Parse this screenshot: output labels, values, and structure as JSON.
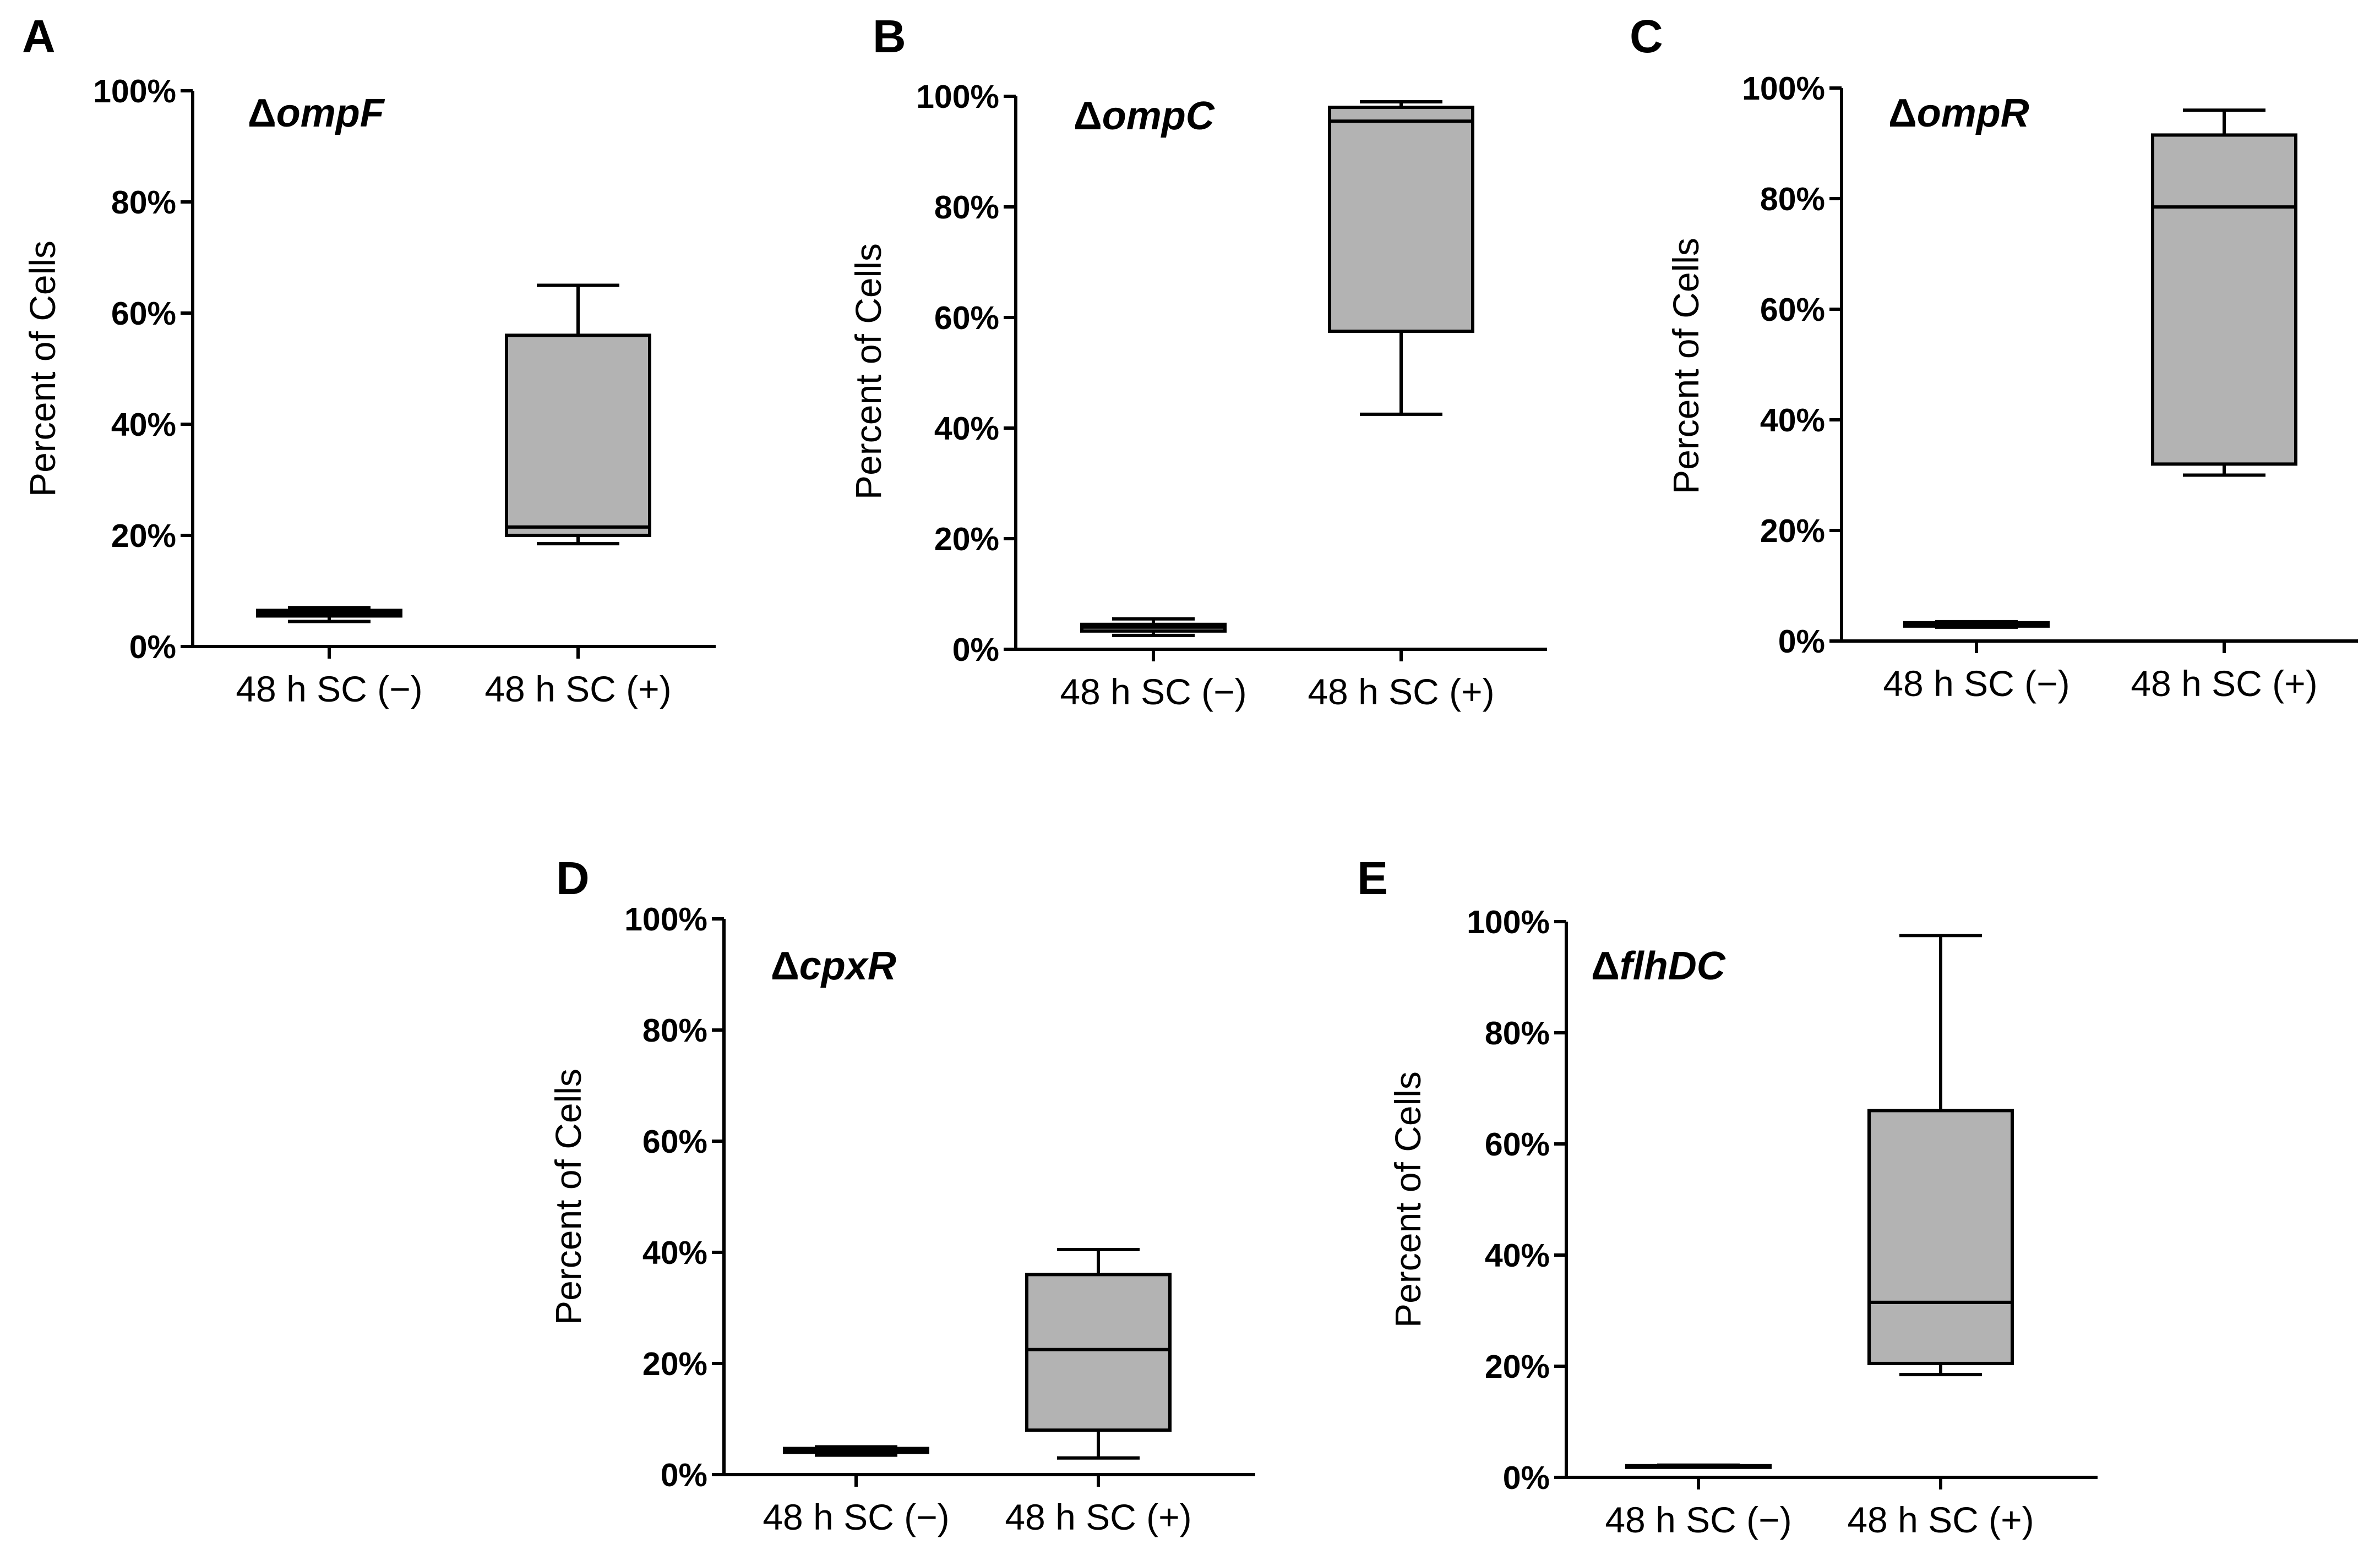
{
  "figure": {
    "panels": [
      "A",
      "B",
      "C",
      "D",
      "E"
    ]
  },
  "chart_data": [
    {
      "panel": "A",
      "type": "box",
      "gene_prefix": "Δ",
      "gene": "ompF",
      "ylabel": "Percent of Cells",
      "xlabel": "",
      "ylim": [
        0,
        100
      ],
      "yticks": [
        "0%",
        "20%",
        "40%",
        "60%",
        "80%",
        "100%"
      ],
      "categories": [
        "48 h SC (−)",
        "48 h SC (+)"
      ],
      "series": [
        {
          "name": "48 h SC (−)",
          "min": 4.5,
          "q1": 5.5,
          "median": 6.0,
          "q3": 6.5,
          "max": 7.0
        },
        {
          "name": "48 h SC (+)",
          "min": 18.5,
          "q1": 20.0,
          "median": 21.5,
          "q3": 56.0,
          "max": 65.0
        }
      ],
      "box_color": "#b3b3b3"
    },
    {
      "panel": "B",
      "type": "box",
      "gene_prefix": "Δ",
      "gene": "ompC",
      "ylabel": "Percent of Cells",
      "xlabel": "",
      "ylim": [
        0,
        100
      ],
      "yticks": [
        "0%",
        "20%",
        "40%",
        "60%",
        "80%",
        "100%"
      ],
      "categories": [
        "48 h SC (−)",
        "48 h SC (+)"
      ],
      "series": [
        {
          "name": "48 h SC (−)",
          "min": 2.5,
          "q1": 3.3,
          "median": 4.0,
          "q3": 4.5,
          "max": 5.5
        },
        {
          "name": "48 h SC (+)",
          "min": 42.5,
          "q1": 57.5,
          "median": 95.5,
          "q3": 98.0,
          "max": 99.0
        }
      ],
      "box_color": "#b3b3b3"
    },
    {
      "panel": "C",
      "type": "box",
      "gene_prefix": "Δ",
      "gene": "ompR",
      "ylabel": "Percent of Cells",
      "xlabel": "",
      "ylim": [
        0,
        100
      ],
      "yticks": [
        "0%",
        "20%",
        "40%",
        "60%",
        "80%",
        "100%"
      ],
      "categories": [
        "48 h SC (−)",
        "48 h SC (+)"
      ],
      "series": [
        {
          "name": "48 h SC (−)",
          "min": 2.5,
          "q1": 2.7,
          "median": 3.0,
          "q3": 3.3,
          "max": 3.5
        },
        {
          "name": "48 h SC (+)",
          "min": 30.0,
          "q1": 32.0,
          "median": 78.5,
          "q3": 91.5,
          "max": 96.0
        }
      ],
      "box_color": "#b3b3b3"
    },
    {
      "panel": "D",
      "type": "box",
      "gene_prefix": "Δ",
      "gene": "cpxR",
      "ylabel": "Percent of Cells",
      "xlabel": "",
      "ylim": [
        0,
        100
      ],
      "yticks": [
        "0%",
        "20%",
        "40%",
        "60%",
        "80%",
        "100%"
      ],
      "categories": [
        "48 h SC (−)",
        "48 h SC (+)"
      ],
      "series": [
        {
          "name": "48 h SC (−)",
          "min": 3.5,
          "q1": 4.0,
          "median": 4.3,
          "q3": 4.7,
          "max": 5.0
        },
        {
          "name": "48 h SC (+)",
          "min": 3.0,
          "q1": 8.0,
          "median": 22.5,
          "q3": 36.0,
          "max": 40.5
        }
      ],
      "box_color": "#b3b3b3"
    },
    {
      "panel": "E",
      "type": "box",
      "gene_prefix": "Δ",
      "gene": "flhDC",
      "ylabel": "Percent of Cells",
      "xlabel": "",
      "ylim": [
        0,
        100
      ],
      "yticks": [
        "0%",
        "20%",
        "40%",
        "60%",
        "80%",
        "100%"
      ],
      "categories": [
        "48 h SC (−)",
        "48 h SC (+)"
      ],
      "series": [
        {
          "name": "48 h SC (−)",
          "min": 2.0,
          "q1": 2.0,
          "median": 2.0,
          "q3": 2.1,
          "max": 2.2
        },
        {
          "name": "48 h SC (+)",
          "min": 18.5,
          "q1": 20.5,
          "median": 31.5,
          "q3": 66.0,
          "max": 97.5
        }
      ],
      "box_color": "#b3b3b3"
    }
  ]
}
